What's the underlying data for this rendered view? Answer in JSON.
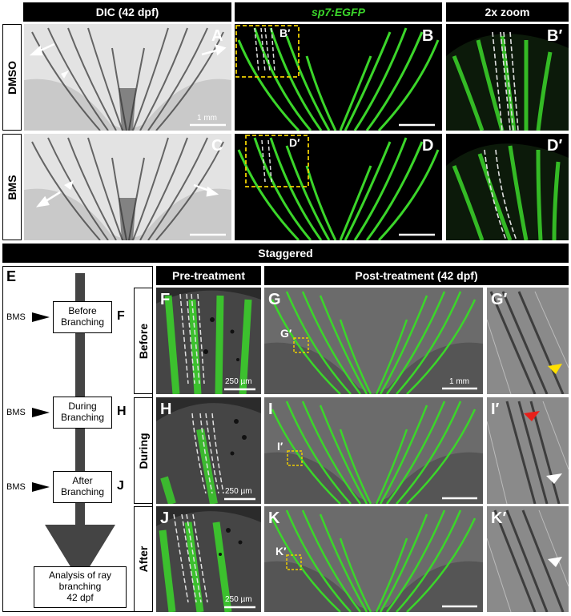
{
  "top_headers": {
    "dic": "DIC (42 dpf)",
    "sp7": "sp7:EGFP",
    "zoom": "2x zoom"
  },
  "rows_top": {
    "dmso": "DMSO",
    "bms": "BMS"
  },
  "panel_letters": {
    "A": "A",
    "B": "B",
    "Bp": "B′",
    "Bp_inset": "B′",
    "C": "C",
    "D": "D",
    "Dp": "D′",
    "Dp_inset": "D′",
    "E": "E",
    "F": "F",
    "G": "G",
    "Gp": "G′",
    "Gp_inset": "G′",
    "H": "H",
    "I": "I",
    "Ip": "I′",
    "Ip_inset": "I′",
    "J": "J",
    "K": "K",
    "Kp": "K′",
    "Kp_inset": "K′"
  },
  "scale_labels": {
    "mm1": "1 mm",
    "um250": "250 µm"
  },
  "staggered_header": "Staggered",
  "bottom_headers": {
    "pre": "Pre-treatment",
    "post": "Post-treatment (42 dpf)"
  },
  "rows_bottom": {
    "before": "Before",
    "during": "During",
    "after": "After"
  },
  "flow": {
    "bms": "BMS",
    "before": "Before\nBranching",
    "during": "During\nBranching",
    "after": "After\nBranching",
    "analysis": "Analysis of ray\nbranching\n42 dpf",
    "label_f": "F",
    "label_h": "H",
    "label_j": "J"
  },
  "colors": {
    "egfp": "#3bd62a",
    "inset_box": "#f0d000",
    "arrow_yellow": "#ffe000",
    "arrow_red": "#e8201a",
    "arrow_white": "#ffffff"
  }
}
